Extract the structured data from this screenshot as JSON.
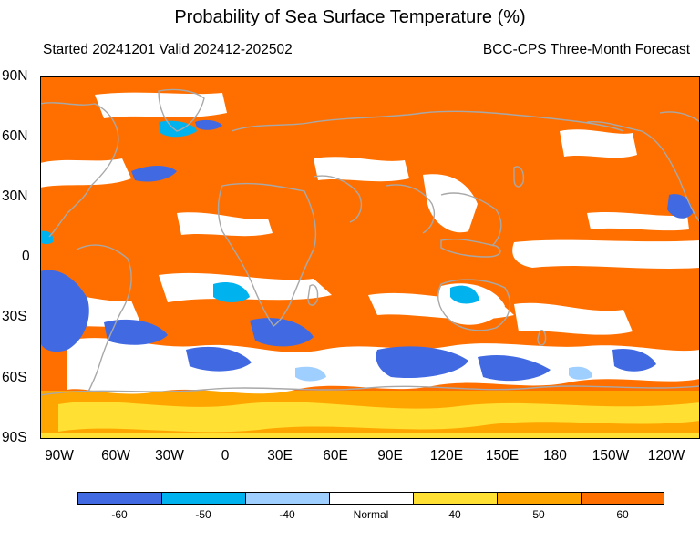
{
  "title": "Probability of Sea Surface Temperature (%)",
  "subtitle_left": "Started 20241201  Valid 202412-202502",
  "subtitle_right": "BCC-CPS Three-Month Forecast",
  "lat_labels": [
    "90N",
    "60N",
    "30N",
    "0",
    "30S",
    "60S",
    "90S"
  ],
  "lon_labels": [
    "90W",
    "60W",
    "30W",
    "0",
    "30E",
    "60E",
    "90E",
    "120E",
    "150E",
    "180",
    "150W",
    "120W"
  ],
  "colorbar": {
    "labels": [
      "-60",
      "-50",
      "-40",
      "Normal",
      "40",
      "50",
      "60"
    ],
    "colors": [
      "#4169e1",
      "#00b2ee",
      "#9fcfff",
      "#ffffff",
      "#ffe033",
      "#ffa500",
      "#ff6f00"
    ]
  },
  "colors": {
    "warm_strong": "#ff6f00",
    "warm_mid": "#ffa500",
    "warm_weak": "#ffe033",
    "normal": "#ffffff",
    "cold_weak": "#9fcfff",
    "cold_mid": "#00b2ee",
    "cold_strong": "#4169e1",
    "coast": "#a8a8a8"
  }
}
